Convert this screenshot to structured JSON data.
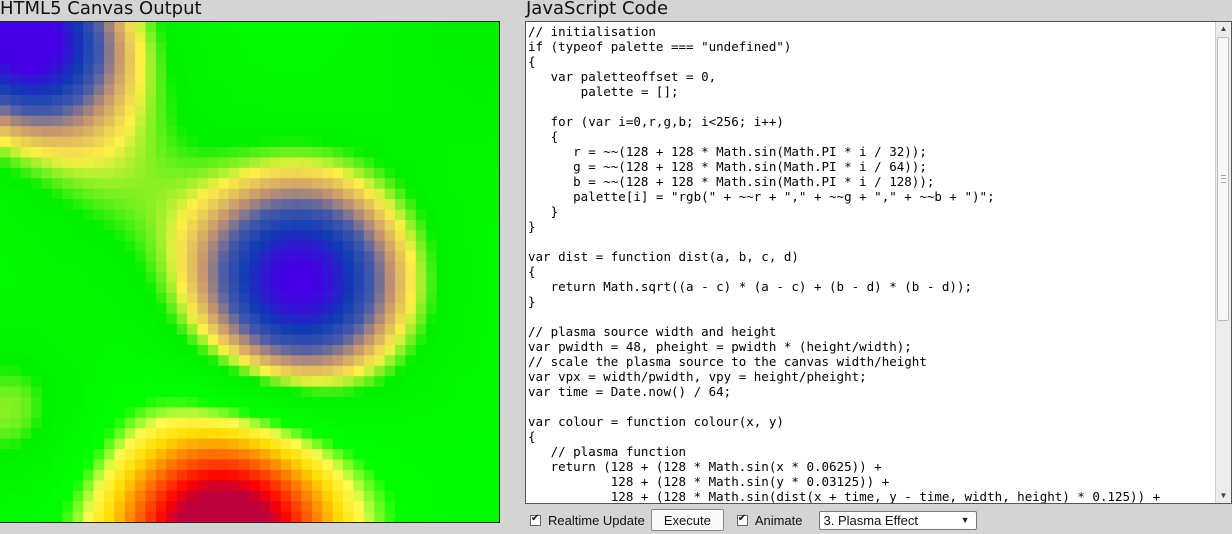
{
  "canvas_panel": {
    "title": "HTML5 Canvas Output"
  },
  "code_panel": {
    "title": "JavaScript Code",
    "code": "// initialisation\nif (typeof palette === \"undefined\")\n{\n   var paletteoffset = 0,\n       palette = [];\n\n   for (var i=0,r,g,b; i<256; i++)\n   {\n      r = ~~(128 + 128 * Math.sin(Math.PI * i / 32));\n      g = ~~(128 + 128 * Math.sin(Math.PI * i / 64));\n      b = ~~(128 + 128 * Math.sin(Math.PI * i / 128));\n      palette[i] = \"rgb(\" + ~~r + \",\" + ~~g + \",\" + ~~b + \")\";\n   }\n}\n\nvar dist = function dist(a, b, c, d)\n{\n   return Math.sqrt((a - c) * (a - c) + (b - d) * (b - d));\n}\n\n// plasma source width and height\nvar pwidth = 48, pheight = pwidth * (height/width);\n// scale the plasma source to the canvas width/height\nvar vpx = width/pwidth, vpy = height/pheight;\nvar time = Date.now() / 64;\n\nvar colour = function colour(x, y)\n{\n   // plasma function\n   return (128 + (128 * Math.sin(x * 0.0625)) +\n           128 + (128 * Math.sin(y * 0.03125)) +\n           128 + (128 * Math.sin(dist(x + time, y - time, width, height) * 0.125)) +"
  },
  "controls": {
    "realtime_label": "Realtime Update",
    "realtime_checked": true,
    "execute_label": "Execute",
    "animate_label": "Animate",
    "animate_checked": true,
    "effect_selected": "3. Plasma Effect"
  }
}
